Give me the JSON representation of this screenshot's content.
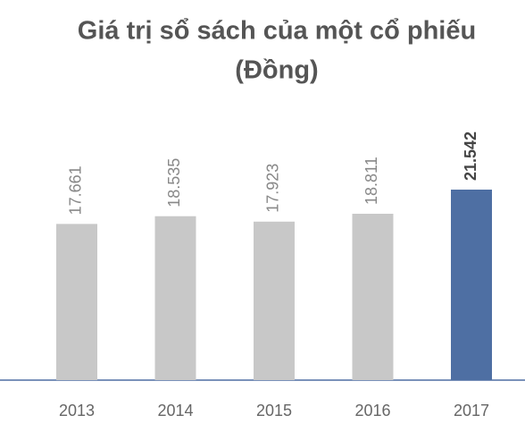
{
  "chart_data": {
    "type": "bar",
    "title": [
      "Giá trị sổ sách của một cổ phiếu",
      "(Đồng)"
    ],
    "categories": [
      "2013",
      "2014",
      "2015",
      "2016",
      "2017"
    ],
    "values": [
      17661,
      18535,
      17923,
      18811,
      21542
    ],
    "value_labels": [
      "17.661",
      "18.535",
      "17.923",
      "18.811",
      "21.542"
    ],
    "colors": [
      "#c8c8c8",
      "#c8c8c8",
      "#c8c8c8",
      "#c8c8c8",
      "#4e6fa3"
    ]
  }
}
